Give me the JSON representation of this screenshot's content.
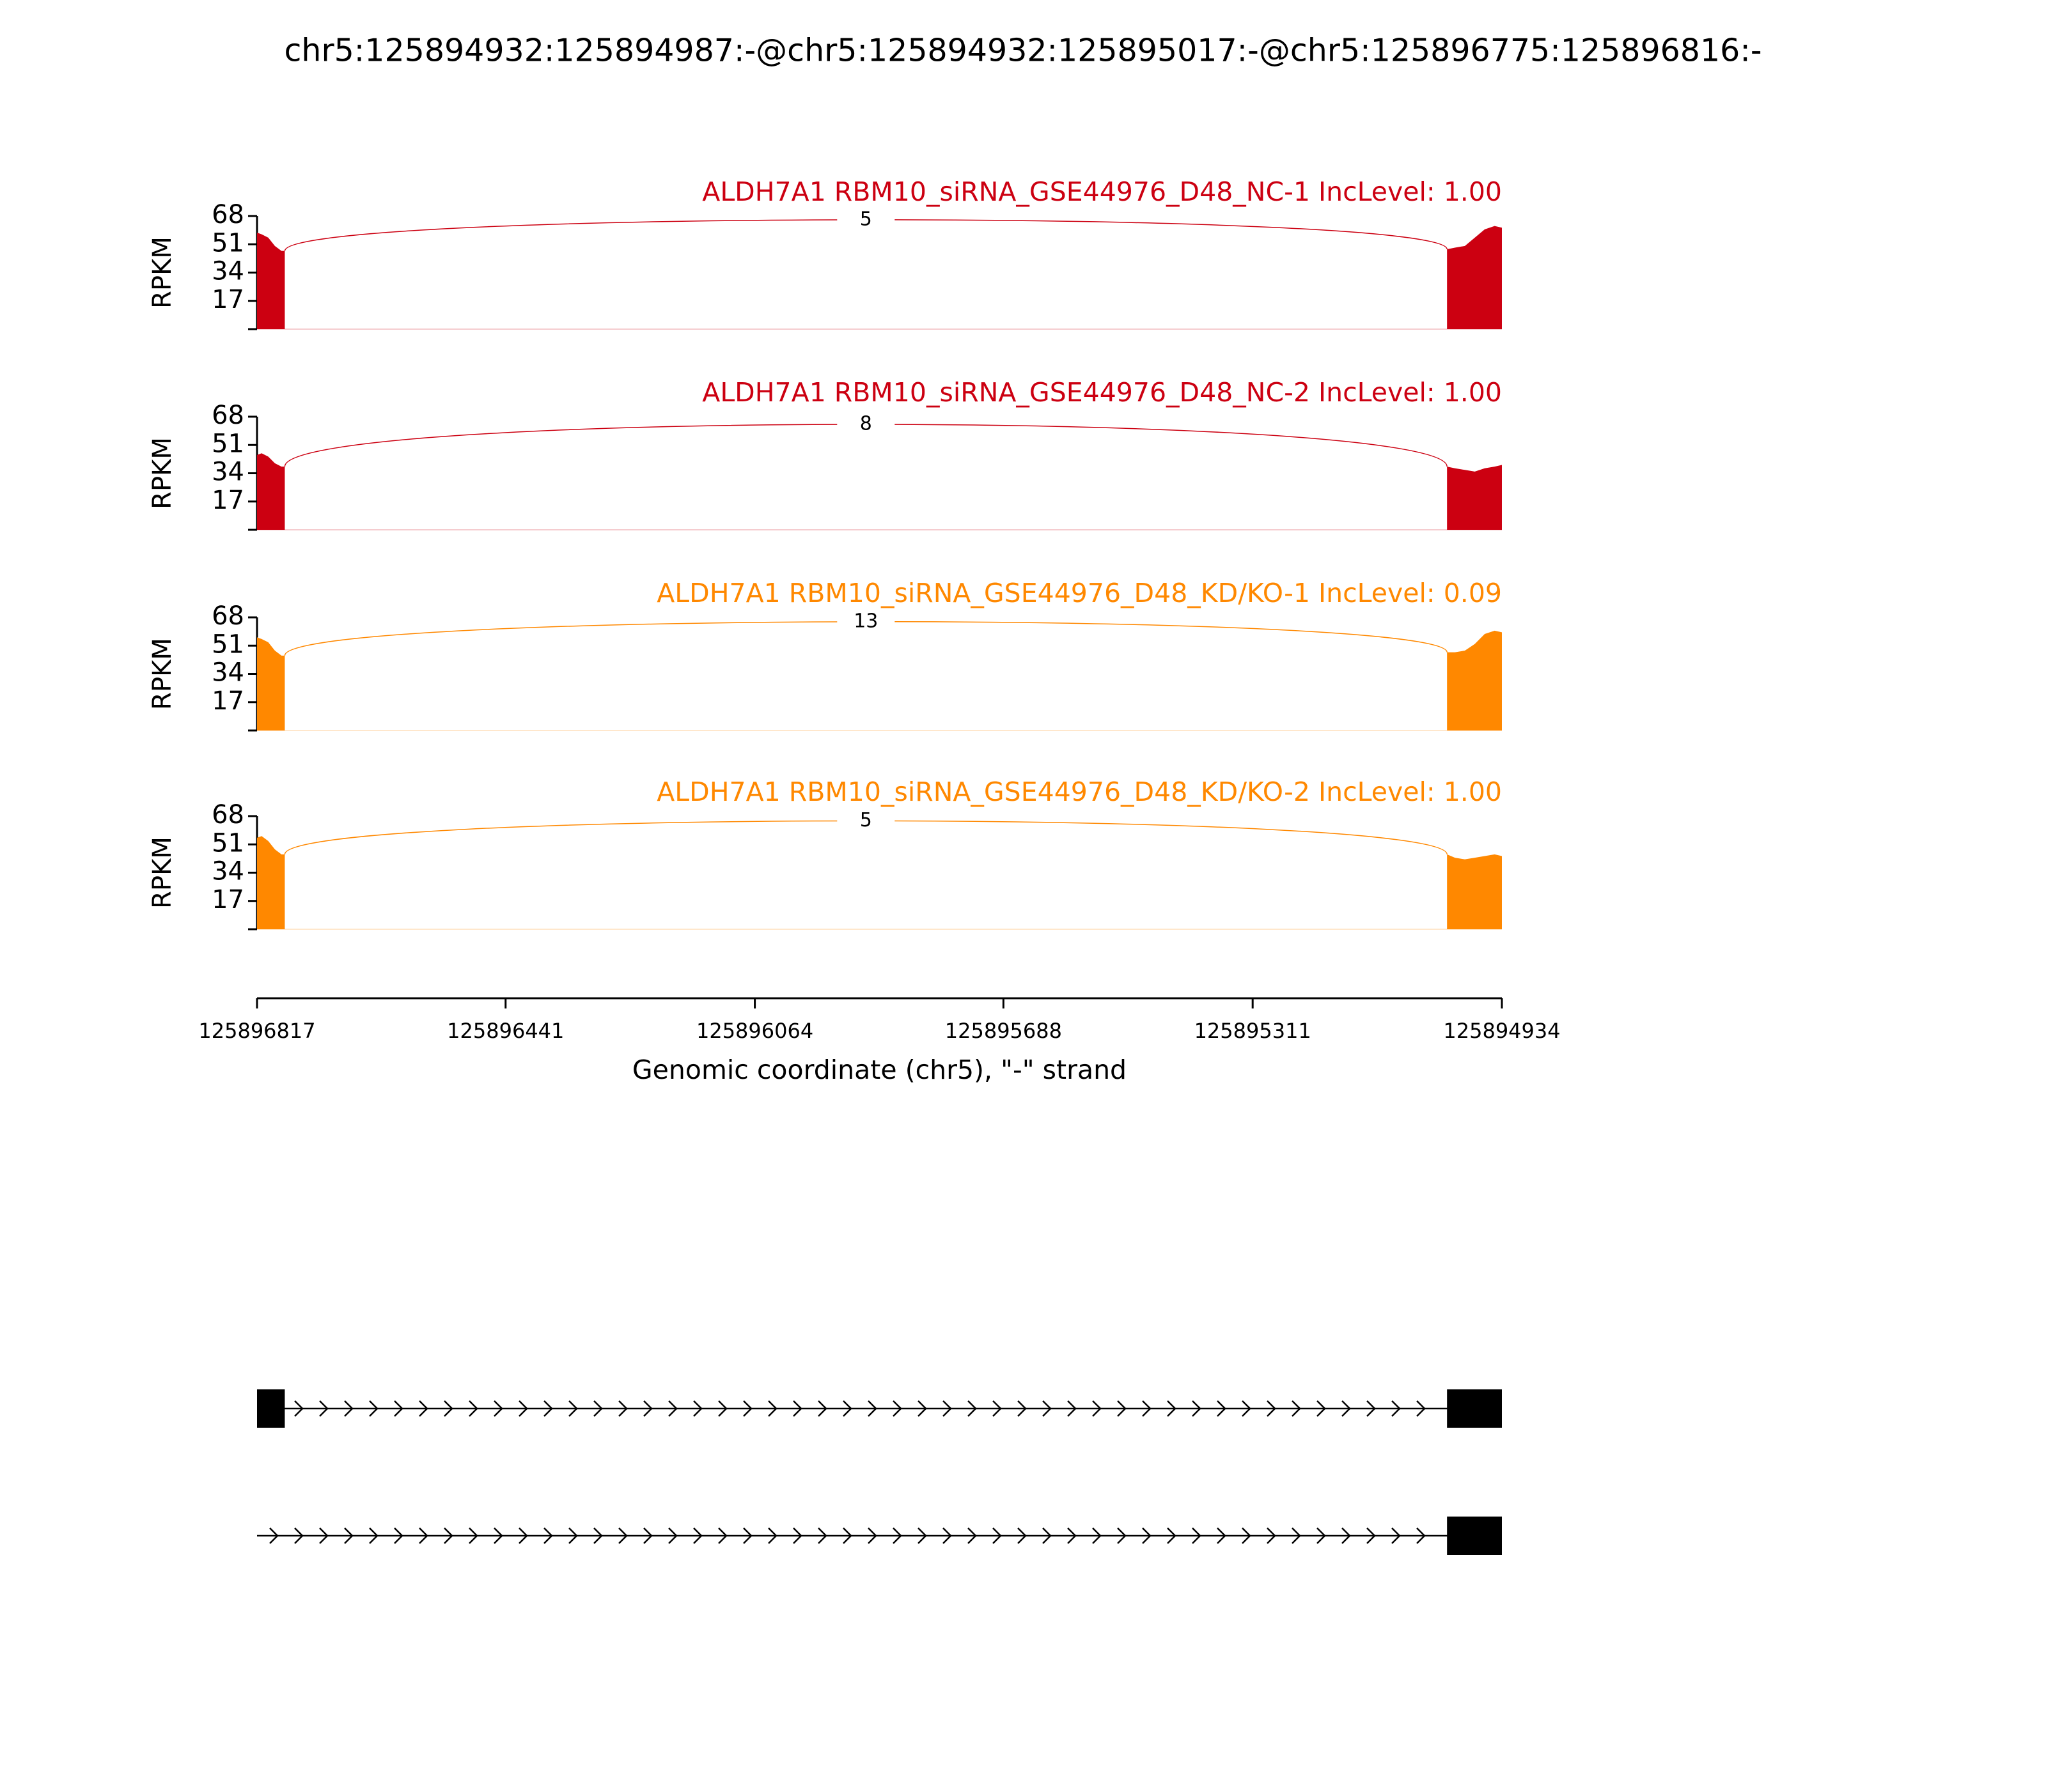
{
  "chart_data": {
    "type": "sashimi",
    "title": "chr5:125894932:125894987:-@chr5:125894932:125895017:-@chr5:125896775:125896816:-",
    "ylabel": "RPKM",
    "xlabel": "Genomic coordinate (chr5), \"-\" strand",
    "xlim": [
      125896817,
      125894934
    ],
    "xticks": [
      125896817,
      125896441,
      125896064,
      125895688,
      125895311,
      125894934
    ],
    "tracks": [
      {
        "label": "ALDH7A1 RBM10_siRNA_GSE44976_D48_NC-1 IncLevel: 1.00",
        "color": "#cc0011",
        "ylim": [
          0,
          68
        ],
        "yticks": [
          17,
          34,
          51,
          68
        ],
        "x": [
          125896817,
          125896810,
          125896800,
          125896790,
          125896780,
          125896775,
          null,
          125895017,
          125895005,
          125894990,
          125894975,
          125894960,
          125894945,
          125894934
        ],
        "values": [
          58,
          57,
          55,
          50,
          47,
          47,
          null,
          48,
          49,
          50,
          55,
          60,
          62,
          61
        ],
        "junctions": [
          {
            "start": 125896775,
            "end": 125895017,
            "count": 5
          }
        ]
      },
      {
        "label": "ALDH7A1 RBM10_siRNA_GSE44976_D48_NC-2 IncLevel: 1.00",
        "color": "#cc0011",
        "ylim": [
          0,
          68
        ],
        "yticks": [
          17,
          34,
          51,
          68
        ],
        "x": [
          125896817,
          125896810,
          125896800,
          125896790,
          125896780,
          125896775,
          null,
          125895017,
          125895005,
          125894990,
          125894975,
          125894960,
          125894945,
          125894934
        ],
        "values": [
          45,
          46,
          44,
          40,
          38,
          38,
          null,
          38,
          37,
          36,
          35,
          37,
          38,
          39
        ],
        "junctions": [
          {
            "start": 125896775,
            "end": 125895017,
            "count": 8
          }
        ]
      },
      {
        "label": "ALDH7A1 RBM10_siRNA_GSE44976_D48_KD/KO-1 IncLevel: 0.09",
        "color": "#ff8800",
        "ylim": [
          0,
          68
        ],
        "yticks": [
          17,
          34,
          51,
          68
        ],
        "x": [
          125896817,
          125896810,
          125896800,
          125896790,
          125896780,
          125896775,
          null,
          125895017,
          125895005,
          125894990,
          125894975,
          125894960,
          125894945,
          125894934
        ],
        "values": [
          56,
          55,
          53,
          48,
          45,
          45,
          null,
          47,
          47,
          48,
          52,
          58,
          60,
          59
        ],
        "junctions": [
          {
            "start": 125896775,
            "end": 125895017,
            "count": 13
          }
        ]
      },
      {
        "label": "ALDH7A1 RBM10_siRNA_GSE44976_D48_KD/KO-2 IncLevel: 1.00",
        "color": "#ff8800",
        "ylim": [
          0,
          68
        ],
        "yticks": [
          17,
          34,
          51,
          68
        ],
        "x": [
          125896817,
          125896810,
          125896800,
          125896790,
          125896780,
          125896775,
          null,
          125895017,
          125895005,
          125894990,
          125894975,
          125894960,
          125894945,
          125894934
        ],
        "values": [
          55,
          56,
          53,
          48,
          45,
          45,
          null,
          45,
          43,
          42,
          43,
          44,
          45,
          44
        ],
        "junctions": [
          {
            "start": 125896775,
            "end": 125895017,
            "count": 5
          }
        ]
      }
    ],
    "transcripts": [
      {
        "span": [
          125896817,
          125894934
        ],
        "exons": [
          [
            125896817,
            125896775
          ],
          [
            125895017,
            125894934
          ]
        ]
      },
      {
        "span": [
          125896817,
          125894934
        ],
        "exons": [
          [
            125895017,
            125894934
          ]
        ]
      }
    ]
  }
}
